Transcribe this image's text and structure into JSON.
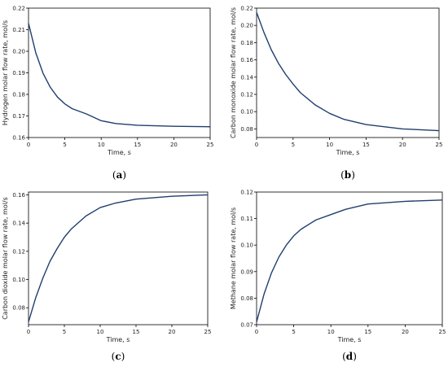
{
  "chart_data": [
    {
      "id": "a",
      "type": "line",
      "caption": "a",
      "xlabel": "Time, s",
      "ylabel": "Hydrogen molar flow rate, mol/s",
      "xlim": [
        0,
        25
      ],
      "ylim": [
        0.16,
        0.22
      ],
      "xticks": [
        0,
        5,
        10,
        15,
        20,
        25
      ],
      "yticks": [
        0.16,
        0.17,
        0.18,
        0.19,
        0.2,
        0.21,
        0.22
      ],
      "grid": false,
      "line_color": "#1f3f6e",
      "series": [
        {
          "x": [
            0,
            1,
            2,
            3,
            4,
            5,
            6,
            8,
            10,
            12,
            15,
            20,
            25
          ],
          "y": [
            0.213,
            0.1993,
            0.1898,
            0.1833,
            0.1787,
            0.1756,
            0.1734,
            0.1709,
            0.1678,
            0.1665,
            0.1657,
            0.1652,
            0.165
          ]
        }
      ]
    },
    {
      "id": "b",
      "type": "line",
      "caption": "b",
      "xlabel": "Time, s",
      "ylabel": "Carbon monoxide molar flow rate, mol/s",
      "xlim": [
        0,
        25
      ],
      "ylim": [
        0.07,
        0.22
      ],
      "xticks": [
        0,
        5,
        10,
        15,
        20,
        25
      ],
      "yticks": [
        0.08,
        0.1,
        0.12,
        0.14,
        0.16,
        0.18,
        0.2,
        0.22
      ],
      "grid": false,
      "line_color": "#1f3f6e",
      "series": [
        {
          "x": [
            0,
            1,
            2,
            3,
            4,
            5,
            6,
            8,
            10,
            12,
            15,
            20,
            25
          ],
          "y": [
            0.215,
            0.192,
            0.172,
            0.156,
            0.143,
            0.132,
            0.122,
            0.108,
            0.098,
            0.091,
            0.085,
            0.08,
            0.078
          ]
        }
      ]
    },
    {
      "id": "c",
      "type": "line",
      "caption": "c",
      "xlabel": "Time, s",
      "ylabel": "Carbon dioxide molar flow rate, mol/s",
      "xlim": [
        0,
        25
      ],
      "ylim": [
        0.068,
        0.162
      ],
      "xticks": [
        0,
        5,
        10,
        15,
        20,
        25
      ],
      "yticks": [
        0.08,
        0.1,
        0.12,
        0.14,
        0.16
      ],
      "grid": false,
      "line_color": "#1f3f6e",
      "series": [
        {
          "x": [
            0,
            1,
            2,
            3,
            4,
            5,
            6,
            8,
            10,
            12,
            15,
            20,
            25
          ],
          "y": [
            0.07,
            0.087,
            0.101,
            0.113,
            0.122,
            0.13,
            0.136,
            0.145,
            0.151,
            0.154,
            0.157,
            0.159,
            0.16
          ]
        }
      ]
    },
    {
      "id": "d",
      "type": "line",
      "caption": "d",
      "xlabel": "Time, s",
      "ylabel": "Methane molar flow rate, mol/s",
      "xlim": [
        0,
        25
      ],
      "ylim": [
        0.07,
        0.12
      ],
      "xticks": [
        0,
        5,
        10,
        15,
        20,
        25
      ],
      "yticks": [
        0.07,
        0.08,
        0.09,
        0.1,
        0.11,
        0.12
      ],
      "grid": false,
      "line_color": "#1f3f6e",
      "series": [
        {
          "x": [
            0,
            1,
            2,
            3,
            4,
            5,
            6,
            8,
            10,
            12,
            15,
            20,
            25
          ],
          "y": [
            0.071,
            0.0815,
            0.0895,
            0.0955,
            0.1,
            0.1035,
            0.106,
            0.1095,
            0.1115,
            0.1135,
            0.1155,
            0.1165,
            0.117
          ]
        }
      ]
    }
  ]
}
